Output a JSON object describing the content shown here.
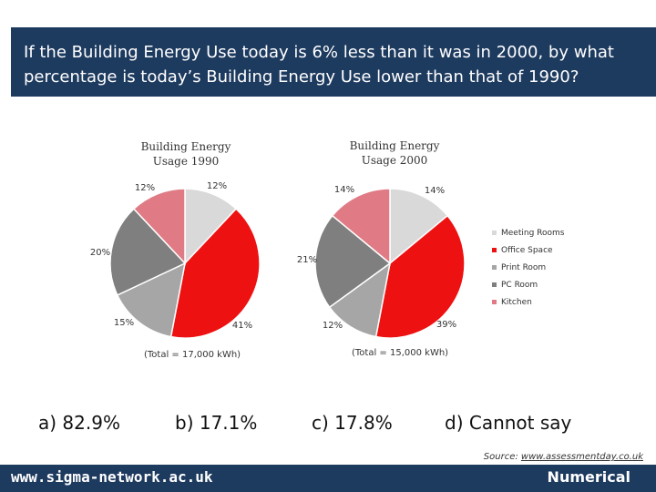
{
  "header": {
    "question_line1": "If the Building Energy Use today is 6% less than it was in 2000, by what",
    "question_line2": "percentage is today’s Building Energy Use lower than that of 1990?"
  },
  "chart_data": [
    {
      "type": "pie",
      "title_line1": "Building Energy",
      "title_line2": "Usage 1990",
      "total_label": "(Total = 17,000 kWh)",
      "categories": [
        "Meeting Rooms",
        "Office Space",
        "Print Room",
        "PC Room",
        "Kitchen"
      ],
      "values": [
        12,
        41,
        15,
        20,
        12
      ],
      "value_labels": [
        "12%",
        "41%",
        "15%",
        "20%",
        "12%"
      ]
    },
    {
      "type": "pie",
      "title_line1": "Building Energy",
      "title_line2": "Usage 2000",
      "total_label": "(Total = 15,000 kWh)",
      "categories": [
        "Meeting Rooms",
        "Office Space",
        "Print Room",
        "PC Room",
        "Kitchen"
      ],
      "values": [
        14,
        39,
        12,
        21,
        14
      ],
      "value_labels": [
        "14%",
        "39%",
        "12%",
        "21%",
        "14%"
      ]
    }
  ],
  "legend": {
    "items": [
      {
        "label": "Meeting Rooms",
        "color": "#d9d9d9"
      },
      {
        "label": "Office Space",
        "color": "#ee1111"
      },
      {
        "label": "Print Room",
        "color": "#a6a6a6"
      },
      {
        "label": "PC Room",
        "color": "#7f7f7f"
      },
      {
        "label": "Kitchen",
        "color": "#e07b85"
      }
    ]
  },
  "answers": {
    "a": "a) 82.9%",
    "b": "b) 17.1%",
    "c": "c) 17.8%",
    "d": "d) Cannot say"
  },
  "source": {
    "prefix": "Source: ",
    "url": "www.assessmentday.co.uk"
  },
  "footer": {
    "left": "www.sigma-network.ac.uk",
    "right": "Numerical"
  }
}
